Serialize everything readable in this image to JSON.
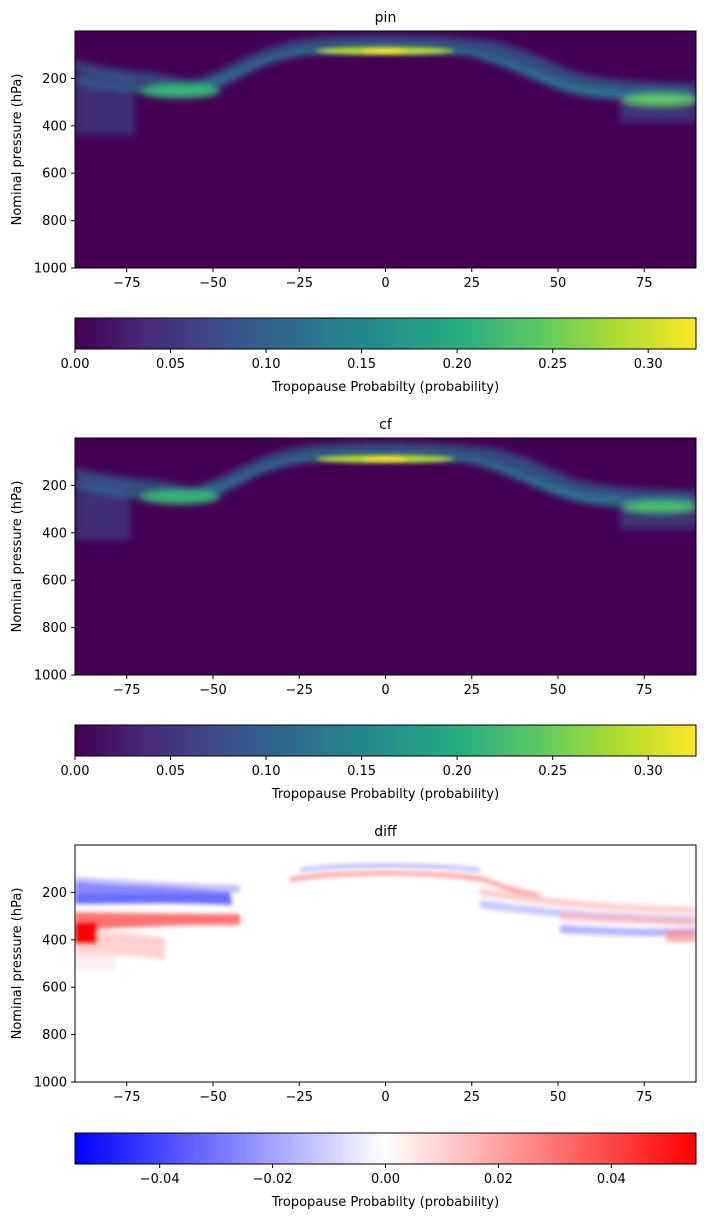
{
  "figure": {
    "background": "#ffffff"
  },
  "chart_data": [
    {
      "type": "heatmap",
      "title": "pin",
      "xlabel": "",
      "ylabel": "Nominal pressure (hPa)",
      "xlim": [
        -90,
        90
      ],
      "ylim": [
        1000,
        0
      ],
      "xticks": [
        -75,
        -50,
        -25,
        0,
        25,
        50,
        75
      ],
      "yticks": [
        200,
        400,
        600,
        800,
        1000
      ],
      "colormap": "viridis",
      "colorbar": {
        "label": "Tropopause Probabilty (probability)",
        "range": [
          0,
          0.325
        ],
        "ticks": [
          "0.00",
          "0.05",
          "0.10",
          "0.15",
          "0.20",
          "0.25",
          "0.30"
        ],
        "tick_values": [
          0,
          0.05,
          0.1,
          0.15,
          0.2,
          0.25,
          0.3
        ]
      },
      "features": [
        {
          "lat_range": [
            -90,
            -45
          ],
          "pressure_hPa": 290,
          "peak_probability": 0.19,
          "note_lat_of_max": -62
        },
        {
          "lat_range": [
            -25,
            25
          ],
          "pressure_hPa": 100,
          "peak_probability": 0.32
        },
        {
          "lat_range": [
            40,
            90
          ],
          "pressure_hPa": 300,
          "peak_probability": 0.24,
          "note_lat_of_max": 82
        }
      ]
    },
    {
      "type": "heatmap",
      "title": "cf",
      "xlabel": "",
      "ylabel": "Nominal pressure (hPa)",
      "xlim": [
        -90,
        90
      ],
      "ylim": [
        1000,
        0
      ],
      "xticks": [
        -75,
        -50,
        -25,
        0,
        25,
        50,
        75
      ],
      "yticks": [
        200,
        400,
        600,
        800,
        1000
      ],
      "colormap": "viridis",
      "colorbar": {
        "label": "Tropopause Probabilty (probability)",
        "range": [
          0,
          0.325
        ],
        "ticks": [
          "0.00",
          "0.05",
          "0.10",
          "0.15",
          "0.20",
          "0.25",
          "0.30"
        ],
        "tick_values": [
          0,
          0.05,
          0.1,
          0.15,
          0.2,
          0.25,
          0.3
        ]
      },
      "features": [
        {
          "lat_range": [
            -90,
            -45
          ],
          "pressure_hPa": 280,
          "peak_probability": 0.18,
          "note_lat_of_max": -62
        },
        {
          "lat_range": [
            -25,
            25
          ],
          "pressure_hPa": 100,
          "peak_probability": 0.31
        },
        {
          "lat_range": [
            40,
            90
          ],
          "pressure_hPa": 300,
          "peak_probability": 0.23,
          "note_lat_of_max": 82
        }
      ]
    },
    {
      "type": "heatmap",
      "title": "diff",
      "xlabel": "",
      "ylabel": "Nominal pressure (hPa)",
      "xlim": [
        -90,
        90
      ],
      "ylim": [
        1000,
        0
      ],
      "xticks": [
        -75,
        -50,
        -25,
        0,
        25,
        50,
        75
      ],
      "yticks": [
        200,
        400,
        600,
        800,
        1000
      ],
      "colormap": "bwr",
      "colorbar": {
        "label": "Tropopause Probabilty (probability)",
        "range": [
          -0.055,
          0.055
        ],
        "ticks": [
          "−0.04",
          "−0.02",
          "0.00",
          "0.02",
          "0.04"
        ],
        "tick_values": [
          -0.04,
          -0.02,
          0,
          0.02,
          0.04
        ]
      },
      "features": [
        {
          "lat_range": [
            -90,
            -45
          ],
          "pressure_hPa": 230,
          "value": -0.04
        },
        {
          "lat_range": [
            -90,
            -45
          ],
          "pressure_hPa": 290,
          "value": 0.03
        },
        {
          "lat_range": [
            -90,
            -80
          ],
          "pressure_hPa": 360,
          "value": 0.055
        },
        {
          "lat_range": [
            -20,
            40
          ],
          "pressure_hPa": 90,
          "value": -0.02
        },
        {
          "lat_range": [
            -30,
            40
          ],
          "pressure_hPa": 110,
          "value": 0.02
        },
        {
          "lat_range": [
            40,
            90
          ],
          "pressure_hPa": 270,
          "value": 0.02
        },
        {
          "lat_range": [
            40,
            90
          ],
          "pressure_hPa": 330,
          "value": -0.02
        }
      ]
    }
  ]
}
